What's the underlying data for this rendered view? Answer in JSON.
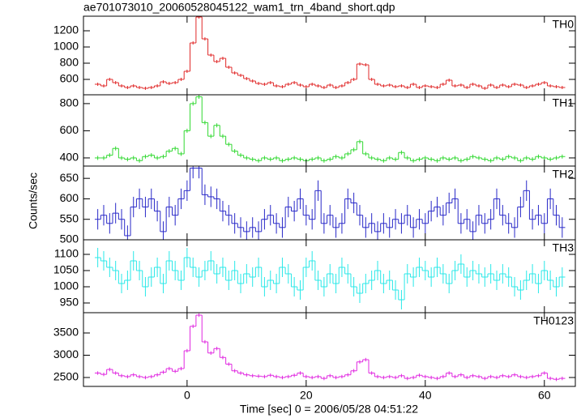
{
  "figure": {
    "title": "ae701073010_20060528045122_wam1_trn_4band_short.qdp",
    "xlabel": "Time [sec] 0 = 2006/05/28 04:51:22",
    "ylabel": "Counts/sec",
    "x": [
      -15,
      -14,
      -13,
      -12,
      -11,
      -10,
      -9,
      -8,
      -7,
      -6,
      -5,
      -4,
      -3,
      -2,
      -1,
      0,
      1,
      2,
      3,
      4,
      5,
      6,
      7,
      8,
      9,
      10,
      11,
      12,
      13,
      14,
      15,
      16,
      17,
      18,
      19,
      20,
      21,
      22,
      23,
      24,
      25,
      26,
      27,
      28,
      29,
      30,
      31,
      32,
      33,
      34,
      35,
      36,
      37,
      38,
      39,
      40,
      41,
      42,
      43,
      44,
      45,
      46,
      47,
      48,
      49,
      50,
      51,
      52,
      53,
      54,
      55,
      56,
      57,
      58,
      59,
      60,
      61,
      62,
      63
    ],
    "xlim": [
      -17.4,
      65.2
    ],
    "xticks": [
      0,
      20,
      40,
      60
    ]
  },
  "chart_data": [
    {
      "type": "line",
      "name": "TH0",
      "color": "#e02828",
      "error": 20,
      "ylim": [
        410,
        1380
      ],
      "yticks": [
        600,
        800,
        1000,
        1200
      ],
      "values": [
        540,
        520,
        600,
        560,
        520,
        500,
        520,
        500,
        490,
        500,
        520,
        570,
        550,
        560,
        600,
        700,
        1050,
        1370,
        1100,
        900,
        820,
        860,
        750,
        680,
        650,
        610,
        580,
        550,
        540,
        560,
        520,
        510,
        540,
        560,
        530,
        510,
        540,
        520,
        500,
        530,
        500,
        520,
        560,
        600,
        790,
        780,
        600,
        540,
        520,
        530,
        510,
        520,
        500,
        540,
        500,
        520,
        510,
        500,
        540,
        590,
        520,
        530,
        500,
        540,
        520,
        490,
        530,
        500,
        530,
        510,
        540,
        530,
        500,
        520,
        540,
        560,
        520,
        510,
        500
      ]
    },
    {
      "type": "line",
      "name": "TH1",
      "color": "#30d830",
      "error": 15,
      "ylim": [
        340,
        865
      ],
      "yticks": [
        400,
        600,
        800
      ],
      "values": [
        400,
        400,
        420,
        470,
        400,
        390,
        400,
        380,
        410,
        420,
        400,
        410,
        450,
        470,
        430,
        600,
        800,
        850,
        660,
        560,
        640,
        560,
        500,
        450,
        420,
        400,
        390,
        380,
        400,
        390,
        400,
        380,
        390,
        400,
        390,
        380,
        390,
        400,
        380,
        390,
        410,
        400,
        430,
        460,
        520,
        430,
        400,
        390,
        380,
        400,
        390,
        440,
        400,
        380,
        390,
        400,
        390,
        380,
        400,
        390,
        400,
        380,
        390,
        410,
        400,
        390,
        380,
        400,
        390,
        410,
        400,
        380,
        400,
        390,
        410,
        400,
        390,
        400,
        410
      ]
    },
    {
      "type": "line",
      "name": "TH2",
      "color": "#2828c8",
      "error": 25,
      "ylim": [
        500,
        680
      ],
      "yticks": [
        500,
        550,
        600,
        650
      ],
      "values": [
        550,
        560,
        540,
        565,
        550,
        510,
        580,
        600,
        580,
        600,
        570,
        520,
        580,
        560,
        600,
        620,
        675,
        675,
        610,
        605,
        600,
        570,
        560,
        540,
        530,
        520,
        530,
        520,
        550,
        560,
        540,
        530,
        580,
        570,
        600,
        560,
        550,
        620,
        540,
        560,
        530,
        540,
        600,
        590,
        560,
        530,
        540,
        520,
        540,
        530,
        550,
        540,
        560,
        530,
        550,
        540,
        570,
        580,
        560,
        590,
        600,
        540,
        550,
        520,
        560,
        540,
        550,
        600,
        560,
        540,
        530,
        580,
        620,
        550,
        560,
        540,
        600,
        560,
        530
      ]
    },
    {
      "type": "line",
      "name": "TH3",
      "color": "#28e8e8",
      "error": 30,
      "ylim": [
        920,
        1145
      ],
      "yticks": [
        950,
        1000,
        1050,
        1100
      ],
      "values": [
        1090,
        1080,
        1060,
        1050,
        1010,
        1020,
        1080,
        1050,
        1000,
        1030,
        1060,
        1010,
        1080,
        1050,
        1020,
        1090,
        1060,
        1030,
        1050,
        1080,
        1040,
        1060,
        1020,
        1050,
        1010,
        1040,
        1030,
        1060,
        1000,
        1020,
        1010,
        1060,
        1040,
        1000,
        990,
        1060,
        1080,
        1020,
        1000,
        1040,
        1010,
        1060,
        1040,
        1000,
        980,
        1010,
        1020,
        1050,
        1010,
        1020,
        990,
        960,
        1040,
        1030,
        1060,
        1050,
        1030,
        1060,
        1040,
        1010,
        1050,
        1070,
        1030,
        1050,
        1040,
        1030,
        1040,
        1020,
        1040,
        1030,
        1000,
        990,
        1020,
        1040,
        1010,
        1050,
        1020,
        1000,
        1030
      ]
    },
    {
      "type": "line",
      "name": "TH0123",
      "color": "#e028e0",
      "error": 40,
      "ylim": [
        2300,
        3955
      ],
      "yticks": [
        2500,
        3000,
        3500
      ],
      "values": [
        2600,
        2570,
        2680,
        2600,
        2540,
        2520,
        2560,
        2520,
        2500,
        2520,
        2560,
        2620,
        2700,
        2640,
        2700,
        3100,
        3650,
        3900,
        3300,
        3050,
        3150,
        2950,
        2800,
        2650,
        2600,
        2560,
        2540,
        2530,
        2520,
        2550,
        2520,
        2500,
        2520,
        2550,
        2600,
        2520,
        2500,
        2520,
        2480,
        2540,
        2500,
        2520,
        2560,
        2650,
        2850,
        2900,
        2600,
        2520,
        2500,
        2520,
        2500,
        2540,
        2480,
        2500,
        2550,
        2520,
        2500,
        2480,
        2520,
        2600,
        2520,
        2560,
        2500,
        2540,
        2520,
        2480,
        2520,
        2500,
        2540,
        2520,
        2560,
        2520,
        2500,
        2520,
        2540,
        2600,
        2480,
        2460,
        2480
      ]
    }
  ]
}
